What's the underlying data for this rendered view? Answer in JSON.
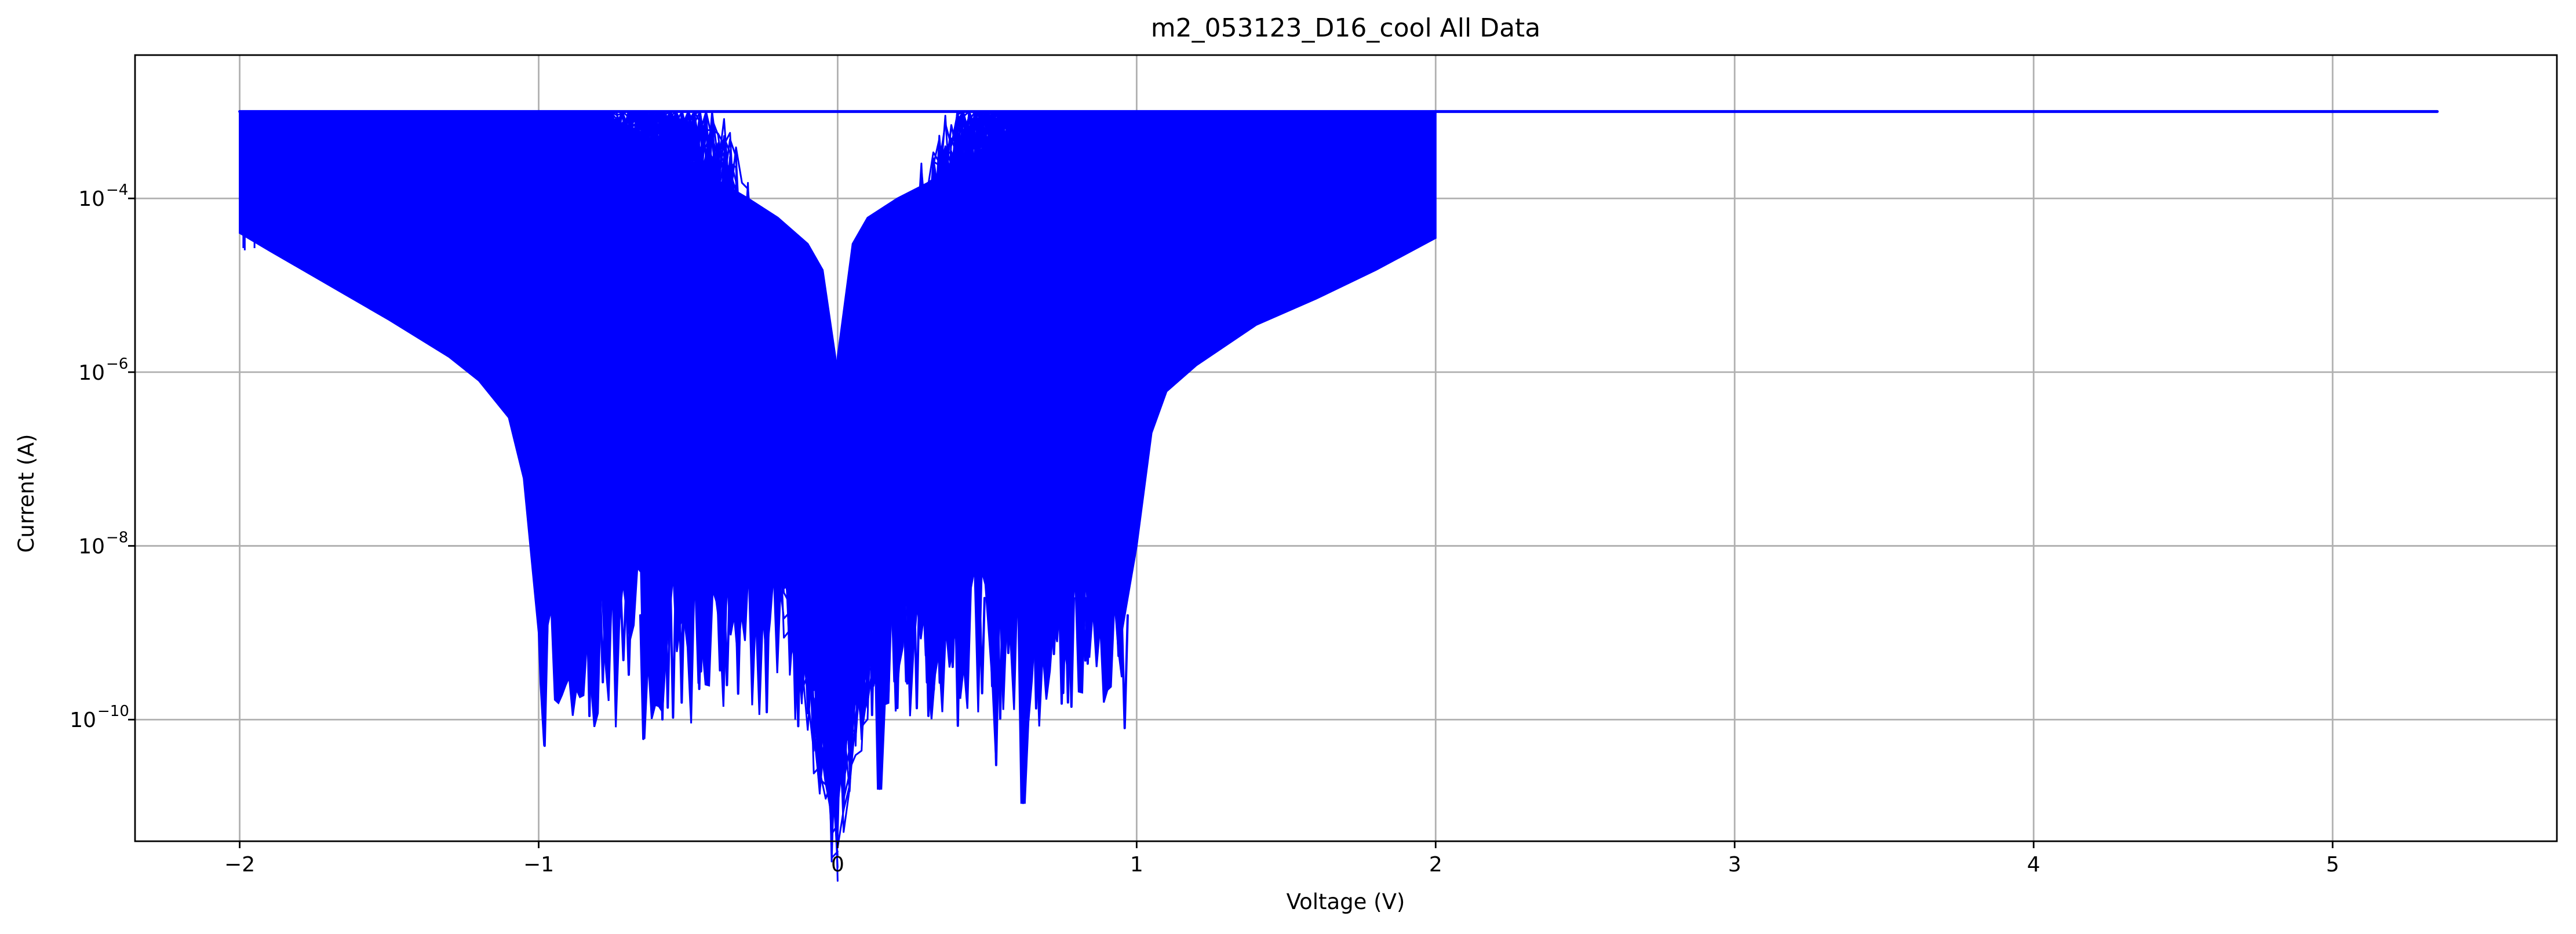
{
  "chart_data": {
    "type": "line",
    "title": "m2_053123_D16_cool All Data",
    "xlabel": "Voltage (V)",
    "ylabel": "Current (A)",
    "xlim": [
      -2.35,
      5.75
    ],
    "ylim": [
      -11.4,
      -2.35
    ],
    "y_scale": "log",
    "grid": true,
    "legend": "none",
    "color": "#0000ff",
    "x_ticks": [
      {
        "value": -2,
        "label": "−2"
      },
      {
        "value": -1,
        "label": "−1"
      },
      {
        "value": 0,
        "label": "0"
      },
      {
        "value": 1,
        "label": "1"
      },
      {
        "value": 2,
        "label": "2"
      },
      {
        "value": 3,
        "label": "3"
      },
      {
        "value": 4,
        "label": "4"
      },
      {
        "value": 5,
        "label": "5"
      }
    ],
    "y_ticks": [
      {
        "value": -4,
        "base": "10",
        "exponent": "−4"
      },
      {
        "value": -6,
        "base": "10",
        "exponent": "−6"
      },
      {
        "value": -8,
        "base": "10",
        "exponent": "−8"
      },
      {
        "value": -10,
        "base": "10",
        "exponent": "−10"
      }
    ],
    "compliance_current": 0.001,
    "compliance_line": {
      "x": [
        -2,
        5.35
      ],
      "y": [
        0.001,
        0.001
      ]
    },
    "envelope": {
      "upper_right": {
        "x": [
          0,
          0.05,
          0.1,
          0.2,
          0.3,
          0.4,
          0.5,
          0.6,
          0.63
        ],
        "y": [
          1.5e-06,
          3e-05,
          6e-05,
          0.0001,
          0.00015,
          0.00025,
          0.0004,
          0.0007,
          0.001
        ]
      },
      "upper_left": {
        "x": [
          -0.8,
          -0.7,
          -0.6,
          -0.5,
          -0.4,
          -0.3,
          -0.2,
          -0.1,
          -0.05,
          0
        ],
        "y": [
          0.001,
          0.0006,
          0.0004,
          0.00025,
          0.00016,
          0.0001,
          6e-05,
          3e-05,
          1.5e-05,
          1e-06
        ]
      },
      "lower_left": {
        "x": [
          -2,
          -1.9,
          -1.7,
          -1.5,
          -1.3,
          -1.2,
          -1.1,
          -1.05,
          -1.0
        ],
        "y": [
          4e-05,
          2.5e-05,
          1e-05,
          4e-06,
          1.5e-06,
          8e-07,
          3e-07,
          6e-08,
          1e-09
        ]
      },
      "lower_right": {
        "x": [
          0.95,
          1.0,
          1.05,
          1.1,
          1.2,
          1.4,
          1.6,
          1.8,
          2.0
        ],
        "y": [
          1e-09,
          1e-08,
          2e-07,
          6e-07,
          1.2e-06,
          3.5e-06,
          7e-06,
          1.5e-05,
          3.5e-05
        ]
      },
      "noise_floor_min": {
        "x": 0.62,
        "y": 1.1e-11
      },
      "noise_floor_dips": [
        {
          "x": -0.98,
          "y": 5e-11
        },
        {
          "x": 0.14,
          "y": 1.6e-11
        },
        {
          "x": 0.53,
          "y": 3e-11
        },
        {
          "x": 0.62,
          "y": 1.1e-11
        },
        {
          "x": -0.65,
          "y": 6e-11
        },
        {
          "x": 0.96,
          "y": 8e-11
        }
      ]
    }
  }
}
